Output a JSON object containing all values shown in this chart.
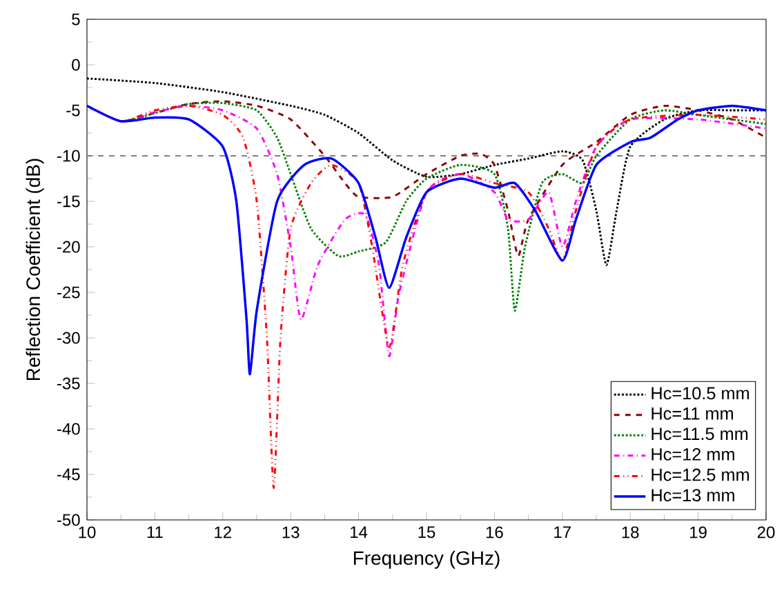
{
  "chart_data": {
    "type": "line",
    "xlabel": "Frequency (GHz)",
    "ylabel": "Reflection Coefficient (dB)",
    "xlim": [
      10,
      20
    ],
    "ylim": [
      -50,
      5
    ],
    "xticks": [
      10,
      11,
      12,
      13,
      14,
      15,
      16,
      17,
      18,
      19,
      20
    ],
    "yticks": [
      -50,
      -45,
      -40,
      -35,
      -30,
      -25,
      -20,
      -15,
      -10,
      -5,
      0,
      5
    ],
    "legend": "bottom right",
    "grid": false,
    "ref_lines": [
      {
        "axis": "y",
        "value": -10,
        "color": "#808080",
        "line_style": "dashed"
      }
    ],
    "series": [
      {
        "name": "Hc=10.5 mm",
        "color": "#000000",
        "line_style": "dotted",
        "x": [
          10,
          11,
          12,
          13,
          13.5,
          14,
          14.5,
          15,
          15.5,
          16,
          16.5,
          17,
          17.3,
          17.5,
          17.65,
          17.8,
          18,
          18.5,
          19,
          19.5,
          20
        ],
        "values": [
          -1.5,
          -2,
          -3,
          -4.5,
          -5.5,
          -7.5,
          -10.5,
          -12.3,
          -12,
          -11,
          -10.3,
          -9.5,
          -10.5,
          -16,
          -22,
          -16,
          -9,
          -6,
          -5,
          -5,
          -5
        ]
      },
      {
        "name": "Hc=11 mm",
        "color": "#8b0000",
        "line_style": "dashed",
        "x": [
          10,
          10.5,
          11,
          11.5,
          12,
          12.5,
          13,
          13.5,
          13.8,
          14,
          14.5,
          15,
          15.5,
          15.8,
          16,
          16.2,
          16.35,
          16.5,
          17,
          17.5,
          18,
          18.5,
          19,
          19.5,
          20
        ],
        "values": [
          -4.5,
          -6.2,
          -5.3,
          -4.3,
          -4,
          -4.5,
          -6,
          -10,
          -13,
          -14.5,
          -14.5,
          -12,
          -10,
          -9.8,
          -11,
          -16,
          -21,
          -17,
          -11,
          -8.5,
          -5.5,
          -4.5,
          -5,
          -6,
          -8
        ]
      },
      {
        "name": "Hc=11.5 mm",
        "color": "#008000",
        "line_style": "dotted",
        "x": [
          10,
          10.5,
          11,
          11.5,
          12,
          12.5,
          12.8,
          13,
          13.3,
          13.7,
          14,
          14.4,
          14.7,
          15,
          15.5,
          16,
          16.2,
          16.3,
          16.45,
          16.7,
          17,
          17.3,
          17.5,
          18,
          18.5,
          19,
          19.5,
          20
        ],
        "values": [
          -4.5,
          -6.2,
          -5.3,
          -4.3,
          -4.2,
          -5,
          -8,
          -12,
          -18,
          -21,
          -20.5,
          -19.5,
          -15,
          -12.5,
          -11,
          -12,
          -18,
          -27,
          -20,
          -13,
          -12,
          -13,
          -10,
          -6,
          -5,
          -5.5,
          -6,
          -6.5
        ]
      },
      {
        "name": "Hc=12 mm",
        "color": "#ff00ff",
        "line_style": "dashdotted",
        "x": [
          10,
          10.5,
          11,
          11.5,
          12,
          12.5,
          12.8,
          13,
          13.15,
          13.4,
          13.8,
          14.1,
          14.3,
          14.45,
          14.6,
          15,
          15.5,
          16,
          16.2,
          16.5,
          16.8,
          17,
          17.2,
          17.5,
          18,
          19,
          20
        ],
        "values": [
          -4.5,
          -6.2,
          -5.2,
          -4.5,
          -5,
          -7,
          -12,
          -20,
          -28,
          -22,
          -17,
          -16.5,
          -22,
          -32,
          -25,
          -14,
          -12,
          -14,
          -17,
          -17,
          -14,
          -20,
          -15,
          -9,
          -6,
          -6,
          -7
        ]
      },
      {
        "name": "Hc=12.5 mm",
        "color": "#ff0000",
        "line_style": "dashdotdotted",
        "x": [
          10,
          10.5,
          11,
          11.5,
          12,
          12.3,
          12.5,
          12.65,
          12.75,
          12.85,
          13,
          13.3,
          13.6,
          14,
          14.2,
          14.45,
          14.65,
          15,
          15.5,
          16,
          16.5,
          16.8,
          17,
          17.2,
          17.5,
          18,
          19,
          20
        ],
        "values": [
          -4.5,
          -6.2,
          -5,
          -4.5,
          -5.5,
          -8,
          -15,
          -30,
          -46.5,
          -30,
          -18,
          -13,
          -11,
          -13,
          -20,
          -31,
          -22,
          -14,
          -12,
          -13,
          -14,
          -18,
          -21.5,
          -16,
          -9,
          -6,
          -5.5,
          -6
        ]
      },
      {
        "name": "Hc=13 mm",
        "color": "#0000ff",
        "line_style": "solid",
        "x": [
          10,
          10.5,
          11,
          11.5,
          12,
          12.2,
          12.35,
          12.4,
          12.5,
          12.8,
          13.2,
          13.6,
          14,
          14.25,
          14.45,
          14.7,
          15,
          15.5,
          16,
          16.3,
          16.6,
          17,
          17.2,
          17.5,
          18,
          18.3,
          18.7,
          19,
          19.5,
          20
        ],
        "values": [
          -4.5,
          -6.2,
          -5.8,
          -6,
          -9,
          -15,
          -28,
          -34,
          -27,
          -15,
          -11,
          -10.3,
          -13,
          -19,
          -24.5,
          -19,
          -14,
          -12.5,
          -13.5,
          -13,
          -16,
          -21.5,
          -17,
          -11,
          -8.5,
          -8,
          -6,
          -5,
          -4.5,
          -5
        ]
      }
    ]
  }
}
